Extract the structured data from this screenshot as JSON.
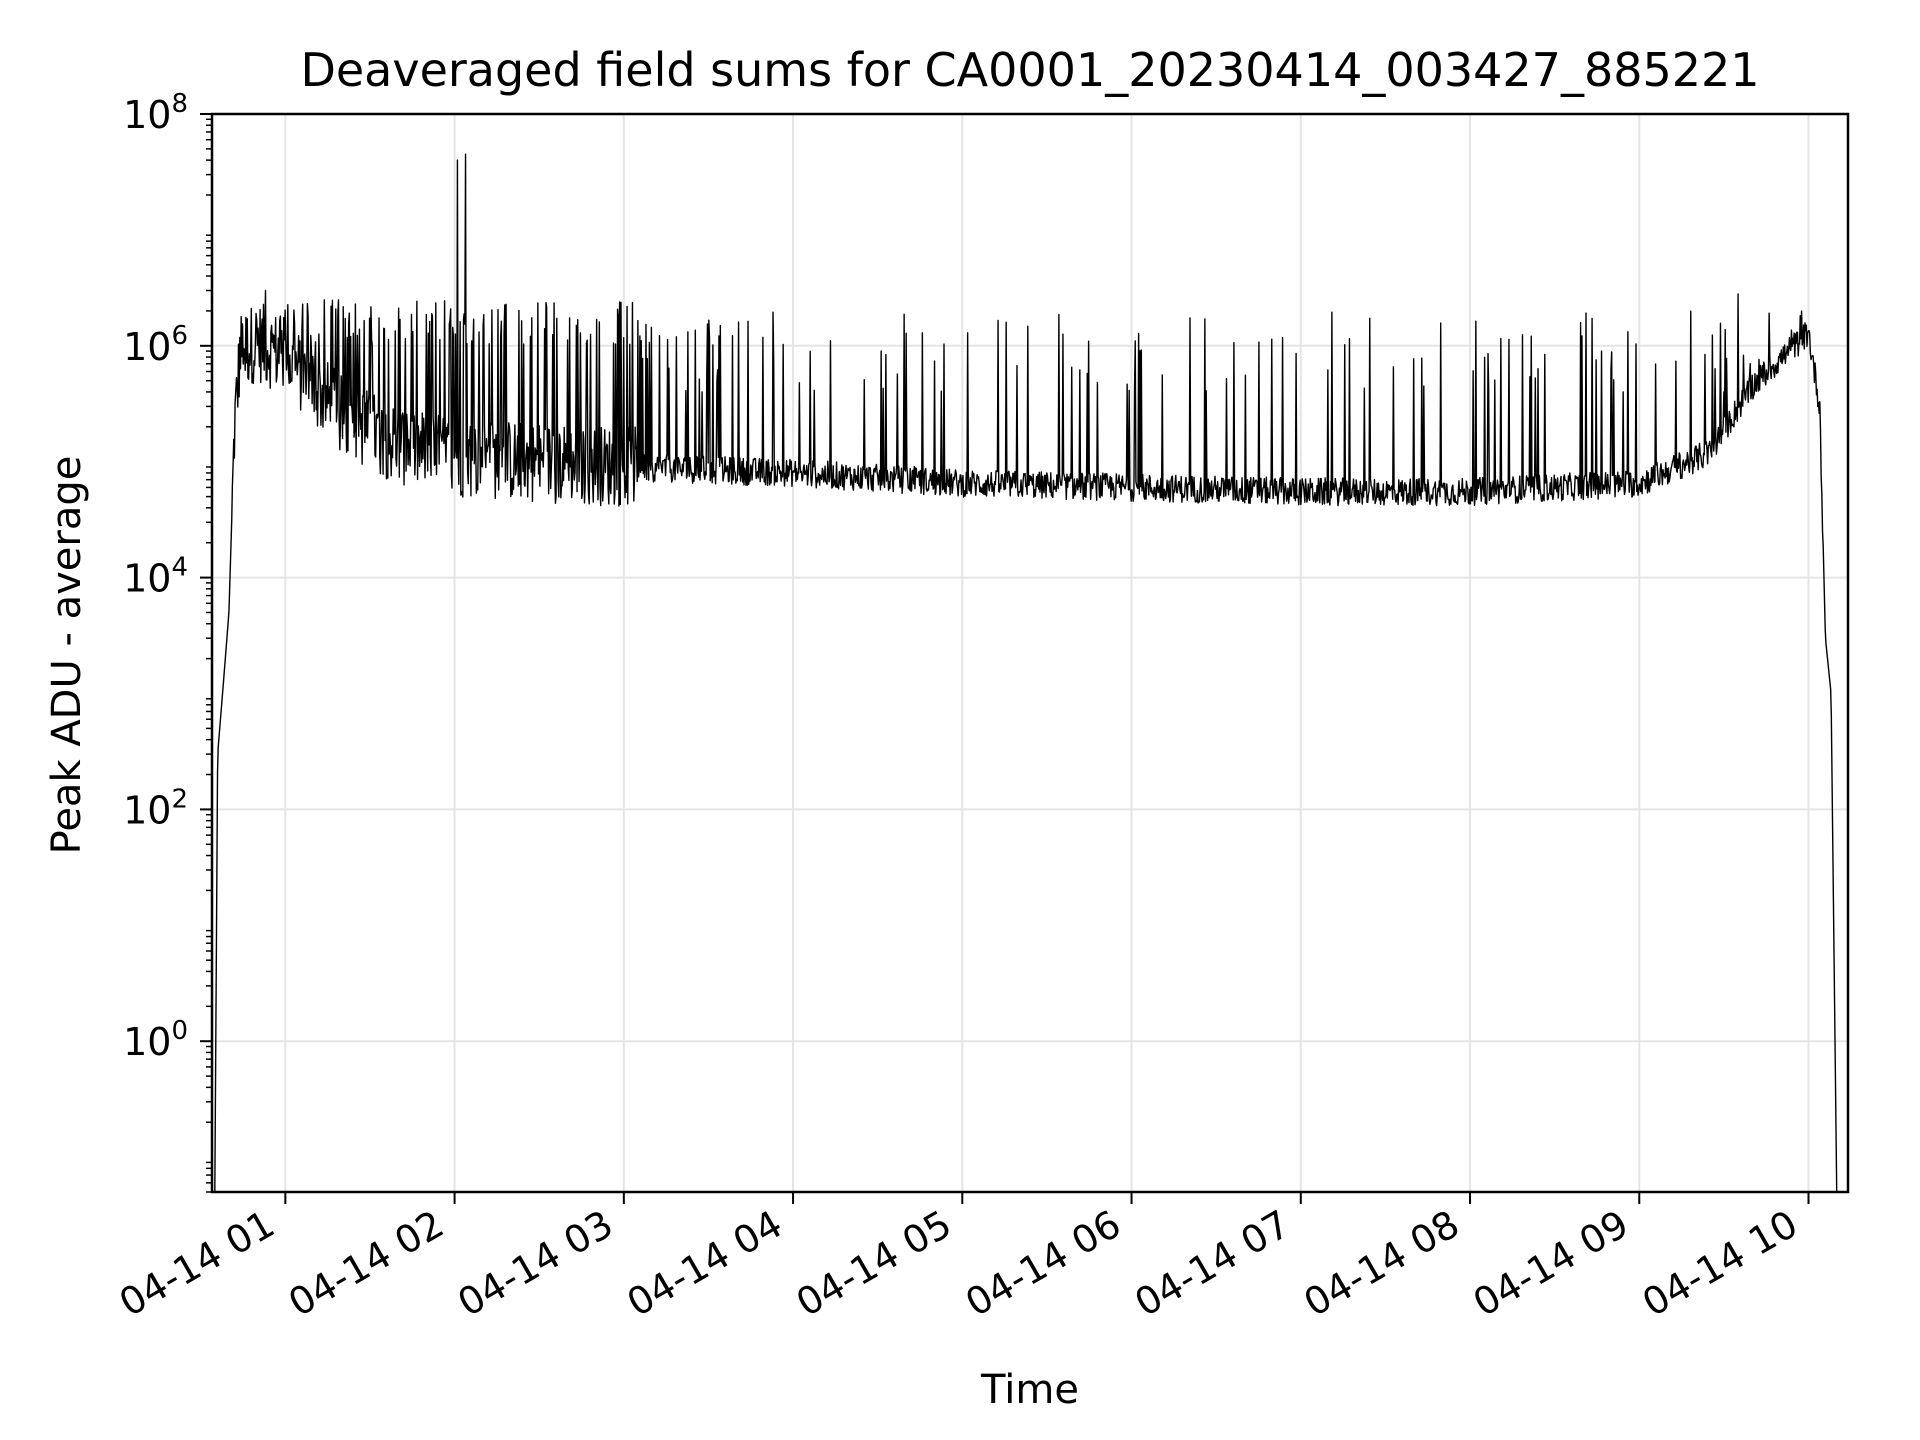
{
  "chart_data": {
    "type": "line",
    "title": "Deaveraged field sums for CA0001_20230414_003427_885221",
    "xlabel": "Time",
    "ylabel": "Peak ADU - average",
    "yscale": "log",
    "grid": true,
    "colors": {
      "line": "#000000",
      "grid": "#e5e5e5",
      "axes": "#000000"
    },
    "xlim": [
      "2023-04-14T00:34:00",
      "2023-04-14T10:14:00"
    ],
    "ylim": [
      0.05,
      100000000
    ],
    "x_ticks": [
      {
        "value": "2023-04-14T01:00",
        "label": "04-14 01"
      },
      {
        "value": "2023-04-14T02:00",
        "label": "04-14 02"
      },
      {
        "value": "2023-04-14T03:00",
        "label": "04-14 03"
      },
      {
        "value": "2023-04-14T04:00",
        "label": "04-14 04"
      },
      {
        "value": "2023-04-14T05:00",
        "label": "04-14 05"
      },
      {
        "value": "2023-04-14T06:00",
        "label": "04-14 06"
      },
      {
        "value": "2023-04-14T07:00",
        "label": "04-14 07"
      },
      {
        "value": "2023-04-14T08:00",
        "label": "04-14 08"
      },
      {
        "value": "2023-04-14T09:00",
        "label": "04-14 09"
      },
      {
        "value": "2023-04-14T10:00",
        "label": "04-14 10"
      }
    ],
    "y_ticks": [
      {
        "value": 1,
        "base": "10",
        "exp": "0"
      },
      {
        "value": 100,
        "base": "10",
        "exp": "2"
      },
      {
        "value": 10000,
        "base": "10",
        "exp": "4"
      },
      {
        "value": 1000000,
        "base": "10",
        "exp": "6"
      },
      {
        "value": 100000000,
        "base": "10",
        "exp": "8"
      }
    ],
    "series": [
      {
        "baseline": [
          {
            "x": "2023-04-14T00:35:00",
            "y": 0.05
          },
          {
            "x": "2023-04-14T00:36:00",
            "y": 300
          },
          {
            "x": "2023-04-14T00:38:00",
            "y": 1200
          },
          {
            "x": "2023-04-14T00:40:00",
            "y": 5000
          },
          {
            "x": "2023-04-14T00:42:00",
            "y": 200000
          },
          {
            "x": "2023-04-14T00:44:00",
            "y": 900000
          },
          {
            "x": "2023-04-14T00:50:00",
            "y": 1100000
          },
          {
            "x": "2023-04-14T01:00:00",
            "y": 800000
          },
          {
            "x": "2023-04-14T01:20:00",
            "y": 250000
          },
          {
            "x": "2023-04-14T01:40:00",
            "y": 140000
          },
          {
            "x": "2023-04-14T02:00:00",
            "y": 110000
          },
          {
            "x": "2023-04-14T03:00:00",
            "y": 90000
          },
          {
            "x": "2023-04-14T04:00:00",
            "y": 80000
          },
          {
            "x": "2023-04-14T05:00:00",
            "y": 65000
          },
          {
            "x": "2023-04-14T06:00:00",
            "y": 60000
          },
          {
            "x": "2023-04-14T07:00:00",
            "y": 55000
          },
          {
            "x": "2023-04-14T08:00:00",
            "y": 55000
          },
          {
            "x": "2023-04-14T09:00:00",
            "y": 65000
          },
          {
            "x": "2023-04-14T09:25:00",
            "y": 120000
          },
          {
            "x": "2023-04-14T09:40:00",
            "y": 450000
          },
          {
            "x": "2023-04-14T09:55:00",
            "y": 1000000
          },
          {
            "x": "2023-04-14T10:00:00",
            "y": 1300000
          },
          {
            "x": "2023-04-14T10:04:00",
            "y": 300000
          },
          {
            "x": "2023-04-14T10:06:00",
            "y": 3000
          },
          {
            "x": "2023-04-14T10:08:00",
            "y": 1000
          },
          {
            "x": "2023-04-14T10:10:00",
            "y": 0.05
          }
        ],
        "spikes": [
          {
            "x": "2023-04-14T02:01:00",
            "y": 40000000
          },
          {
            "x": "2023-04-14T02:04:00",
            "y": 45000000
          },
          {
            "x": "2023-04-14T00:53:00",
            "y": 3000000
          },
          {
            "x": "2023-04-14T09:35:00",
            "y": 2800000
          }
        ]
      }
    ]
  }
}
